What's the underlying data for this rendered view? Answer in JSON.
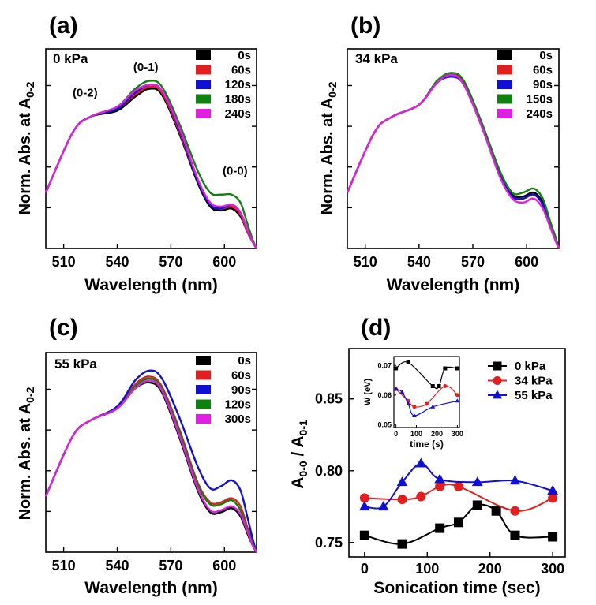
{
  "chart_data": [
    {
      "id": "a",
      "type": "line",
      "panel_label": "(a)",
      "pressure_label": "0 kPa",
      "xlabel": "Wavelength (nm)",
      "ylabel": "Norm. Abs. at A",
      "ylabel_sub": "0-2",
      "xlim": [
        500,
        618
      ],
      "ylim": [
        0,
        1
      ],
      "xticks": [
        510,
        540,
        570,
        600
      ],
      "xticklabels": [
        "510",
        "540",
        "570",
        "600"
      ],
      "yticks_count": 4,
      "legend": "top-right",
      "peak_labels": [
        {
          "text": "(0-2)",
          "x": 522,
          "y": 0.76
        },
        {
          "text": "(0-1)",
          "x": 556,
          "y": 0.89
        },
        {
          "text": "(0-0)",
          "x": 606,
          "y": 0.37
        }
      ],
      "series": [
        {
          "name": "0s",
          "color": "#000000",
          "x": [
            500,
            515,
            525,
            540,
            550,
            558,
            565,
            575,
            585,
            592,
            598,
            604,
            609,
            613,
            616,
            618
          ],
          "y": [
            0.28,
            0.58,
            0.66,
            0.69,
            0.76,
            0.8,
            0.77,
            0.57,
            0.33,
            0.21,
            0.19,
            0.2,
            0.16,
            0.08,
            0.03,
            0.0
          ]
        },
        {
          "name": "60s",
          "color": "#e02020",
          "x": [
            500,
            515,
            525,
            540,
            550,
            558,
            565,
            575,
            585,
            592,
            598,
            604,
            609,
            613,
            616,
            618
          ],
          "y": [
            0.28,
            0.58,
            0.66,
            0.7,
            0.77,
            0.81,
            0.78,
            0.58,
            0.34,
            0.22,
            0.2,
            0.21,
            0.17,
            0.08,
            0.03,
            0.0
          ]
        },
        {
          "name": "120s",
          "color": "#1010d0",
          "x": [
            500,
            515,
            525,
            540,
            550,
            558,
            565,
            575,
            585,
            592,
            598,
            604,
            609,
            613,
            616,
            618
          ],
          "y": [
            0.28,
            0.58,
            0.66,
            0.7,
            0.78,
            0.82,
            0.79,
            0.59,
            0.34,
            0.22,
            0.2,
            0.22,
            0.18,
            0.09,
            0.03,
            0.0
          ]
        },
        {
          "name": "180s",
          "color": "#108010",
          "x": [
            500,
            515,
            525,
            540,
            550,
            558,
            565,
            575,
            585,
            592,
            598,
            604,
            609,
            613,
            616,
            618
          ],
          "y": [
            0.28,
            0.58,
            0.66,
            0.71,
            0.8,
            0.84,
            0.81,
            0.62,
            0.39,
            0.28,
            0.27,
            0.27,
            0.23,
            0.12,
            0.04,
            0.0
          ]
        },
        {
          "name": "240s",
          "color": "#e020e0",
          "x": [
            500,
            515,
            525,
            540,
            550,
            558,
            565,
            575,
            585,
            592,
            598,
            604,
            609,
            613,
            616,
            618
          ],
          "y": [
            0.28,
            0.58,
            0.66,
            0.71,
            0.79,
            0.82,
            0.79,
            0.6,
            0.35,
            0.23,
            0.21,
            0.22,
            0.18,
            0.09,
            0.03,
            0.0
          ]
        }
      ]
    },
    {
      "id": "b",
      "type": "line",
      "panel_label": "(b)",
      "pressure_label": "34 kPa",
      "xlabel": "Wavelength (nm)",
      "ylabel": "Norm. Abs. at A",
      "ylabel_sub": "0-2",
      "xlim": [
        500,
        618
      ],
      "ylim": [
        0,
        1
      ],
      "xticks": [
        510,
        540,
        570,
        600
      ],
      "xticklabels": [
        "510",
        "540",
        "570",
        "600"
      ],
      "yticks_count": 4,
      "legend": "top-right",
      "series": [
        {
          "name": "0s",
          "color": "#000000",
          "x": [
            500,
            515,
            525,
            540,
            550,
            558,
            565,
            575,
            585,
            592,
            598,
            604,
            609,
            613,
            616,
            618
          ],
          "y": [
            0.28,
            0.58,
            0.66,
            0.72,
            0.83,
            0.87,
            0.83,
            0.62,
            0.38,
            0.27,
            0.26,
            0.28,
            0.23,
            0.13,
            0.05,
            0.0
          ]
        },
        {
          "name": "60s",
          "color": "#e02020",
          "x": [
            500,
            515,
            525,
            540,
            550,
            558,
            565,
            575,
            585,
            592,
            598,
            604,
            609,
            613,
            616,
            618
          ],
          "y": [
            0.28,
            0.58,
            0.66,
            0.72,
            0.83,
            0.87,
            0.83,
            0.62,
            0.37,
            0.26,
            0.25,
            0.27,
            0.22,
            0.12,
            0.05,
            0.0
          ]
        },
        {
          "name": "90s",
          "color": "#1010d0",
          "x": [
            500,
            515,
            525,
            540,
            550,
            558,
            565,
            575,
            585,
            592,
            598,
            604,
            609,
            613,
            616,
            618
          ],
          "y": [
            0.28,
            0.58,
            0.66,
            0.72,
            0.83,
            0.86,
            0.82,
            0.61,
            0.37,
            0.26,
            0.25,
            0.27,
            0.22,
            0.12,
            0.05,
            0.0
          ]
        },
        {
          "name": "150s",
          "color": "#108010",
          "x": [
            500,
            515,
            525,
            540,
            550,
            558,
            565,
            575,
            585,
            592,
            598,
            604,
            609,
            613,
            616,
            618
          ],
          "y": [
            0.28,
            0.58,
            0.66,
            0.72,
            0.84,
            0.88,
            0.84,
            0.63,
            0.39,
            0.28,
            0.28,
            0.3,
            0.25,
            0.14,
            0.06,
            0.0
          ]
        },
        {
          "name": "240s",
          "color": "#e020e0",
          "x": [
            500,
            515,
            525,
            540,
            550,
            558,
            565,
            575,
            585,
            592,
            598,
            604,
            609,
            613,
            616,
            618
          ],
          "y": [
            0.28,
            0.58,
            0.66,
            0.72,
            0.83,
            0.87,
            0.82,
            0.61,
            0.36,
            0.25,
            0.23,
            0.25,
            0.2,
            0.11,
            0.04,
            0.0
          ]
        }
      ]
    },
    {
      "id": "c",
      "type": "line",
      "panel_label": "(c)",
      "pressure_label": "55 kPa",
      "xlabel": "Wavelength (nm)",
      "ylabel": "Norm. Abs. at A",
      "ylabel_sub": "0-2",
      "xlim": [
        500,
        618
      ],
      "ylim": [
        0,
        1
      ],
      "xticks": [
        510,
        540,
        570,
        600
      ],
      "xticklabels": [
        "510",
        "540",
        "570",
        "600"
      ],
      "yticks_count": 4,
      "legend": "top-right",
      "series": [
        {
          "name": "0s",
          "color": "#000000",
          "x": [
            500,
            515,
            525,
            540,
            550,
            558,
            565,
            575,
            585,
            592,
            598,
            604,
            609,
            613,
            616,
            618
          ],
          "y": [
            0.28,
            0.58,
            0.66,
            0.72,
            0.82,
            0.85,
            0.8,
            0.57,
            0.31,
            0.2,
            0.2,
            0.22,
            0.18,
            0.09,
            0.03,
            0.0
          ]
        },
        {
          "name": "60s",
          "color": "#e02020",
          "x": [
            500,
            515,
            525,
            540,
            550,
            558,
            565,
            575,
            585,
            592,
            598,
            604,
            609,
            613,
            616,
            618
          ],
          "y": [
            0.28,
            0.58,
            0.66,
            0.72,
            0.84,
            0.88,
            0.83,
            0.61,
            0.35,
            0.25,
            0.25,
            0.27,
            0.23,
            0.12,
            0.04,
            0.0
          ]
        },
        {
          "name": "90s",
          "color": "#1010d0",
          "x": [
            500,
            515,
            525,
            540,
            550,
            558,
            565,
            575,
            585,
            592,
            598,
            604,
            609,
            613,
            616,
            618
          ],
          "y": [
            0.28,
            0.58,
            0.66,
            0.73,
            0.86,
            0.91,
            0.87,
            0.67,
            0.43,
            0.32,
            0.33,
            0.36,
            0.31,
            0.17,
            0.06,
            0.0
          ]
        },
        {
          "name": "120s",
          "color": "#108010",
          "x": [
            500,
            515,
            525,
            540,
            550,
            558,
            565,
            575,
            585,
            592,
            598,
            604,
            609,
            613,
            616,
            618
          ],
          "y": [
            0.28,
            0.58,
            0.66,
            0.72,
            0.83,
            0.87,
            0.82,
            0.6,
            0.34,
            0.24,
            0.24,
            0.26,
            0.21,
            0.11,
            0.04,
            0.0
          ]
        },
        {
          "name": "300s",
          "color": "#e020e0",
          "x": [
            500,
            515,
            525,
            540,
            550,
            558,
            565,
            575,
            585,
            592,
            598,
            604,
            609,
            613,
            616,
            618
          ],
          "y": [
            0.28,
            0.58,
            0.66,
            0.72,
            0.82,
            0.86,
            0.81,
            0.58,
            0.32,
            0.21,
            0.21,
            0.23,
            0.19,
            0.1,
            0.03,
            0.0
          ]
        }
      ]
    },
    {
      "id": "d",
      "type": "scatter",
      "panel_label": "(d)",
      "xlabel": "Sonication time (sec)",
      "ylabel": "A",
      "ylabel_sub1": "0-0",
      "ylabel_mid": " / A",
      "ylabel_sub2": "0-1",
      "xlim": [
        -25,
        320
      ],
      "ylim": [
        0.74,
        0.885
      ],
      "xticks": [
        0,
        100,
        200,
        300
      ],
      "xticklabels": [
        "0",
        "100",
        "200",
        "300"
      ],
      "yticks": [
        0.75,
        0.8,
        0.85
      ],
      "yticklabels": [
        "0.75",
        "0.80",
        "0.85"
      ],
      "legend": "top-right",
      "series": [
        {
          "name": "0 kPa",
          "color": "#000000",
          "marker": "square",
          "x": [
            0,
            60,
            120,
            150,
            180,
            210,
            240,
            300
          ],
          "y": [
            0.755,
            0.749,
            0.76,
            0.764,
            0.776,
            0.772,
            0.755,
            0.754
          ]
        },
        {
          "name": "34 kPa",
          "color": "#e02020",
          "marker": "circle",
          "x": [
            0,
            60,
            90,
            120,
            150,
            240,
            300
          ],
          "y": [
            0.781,
            0.78,
            0.782,
            0.789,
            0.789,
            0.772,
            0.781
          ]
        },
        {
          "name": "55 kPa",
          "color": "#1010d0",
          "marker": "triangle",
          "x": [
            0,
            30,
            60,
            90,
            120,
            180,
            240,
            300
          ],
          "y": [
            0.775,
            0.775,
            0.792,
            0.805,
            0.794,
            0.792,
            0.793,
            0.786
          ]
        }
      ],
      "inset": {
        "xlabel": "time (s)",
        "ylabel": "W (eV)",
        "xlim": [
          -10,
          310
        ],
        "ylim": [
          0.049,
          0.073
        ],
        "xticks": [
          0,
          100,
          200,
          300
        ],
        "xticklabels": [
          "0",
          "100",
          "200",
          "300"
        ],
        "yticks": [
          0.05,
          0.06,
          0.07
        ],
        "yticklabels": [
          "0.05",
          "0.06",
          "0.07"
        ],
        "series": [
          {
            "name": "0 kPa",
            "color": "#000000",
            "marker": "square",
            "x": [
              0,
              60,
              180,
              210,
              240,
              300
            ],
            "y": [
              0.069,
              0.071,
              0.063,
              0.063,
              0.069,
              0.069
            ]
          },
          {
            "name": "34 kPa",
            "color": "#e02020",
            "marker": "circle",
            "x": [
              0,
              60,
              90,
              150,
              240,
              300
            ],
            "y": [
              0.062,
              0.058,
              0.056,
              0.057,
              0.063,
              0.06
            ]
          },
          {
            "name": "55 kPa",
            "color": "#1010d0",
            "marker": "triangle",
            "x": [
              0,
              30,
              60,
              90,
              180,
              300
            ],
            "y": [
              0.062,
              0.061,
              0.057,
              0.053,
              0.056,
              0.058
            ]
          }
        ]
      }
    }
  ]
}
